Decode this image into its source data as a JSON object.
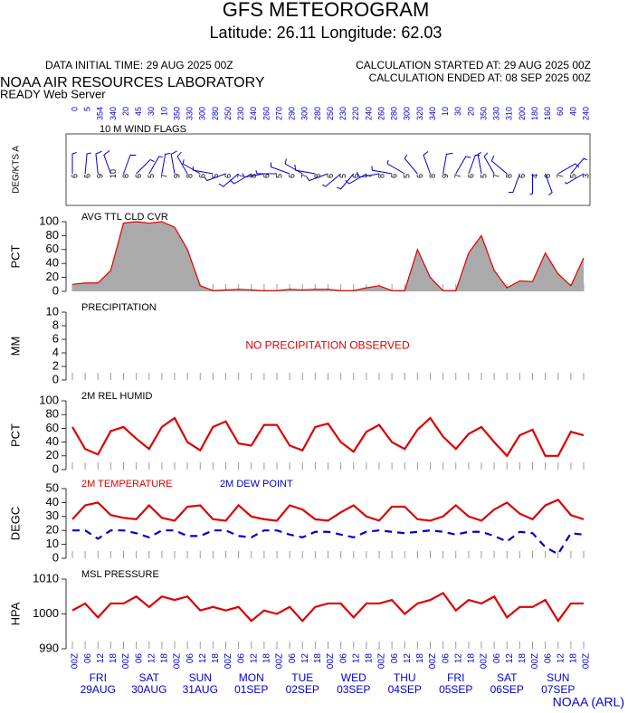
{
  "header": {
    "title": "GFS METEOROGRAM",
    "subtitle": "Latitude: 26.11 Longitude:  62.03",
    "data_time": "DATA INITIAL TIME: 29 AUG 2025 00Z",
    "calc_started": "CALCULATION STARTED AT: 29 AUG 2025 00Z",
    "calc_ended": "CALCULATION ENDED AT: 08 SEP 2025 00Z",
    "lab": "NOAA AIR RESOURCES LABORATORY",
    "server": "READY Web Server",
    "footer": "NOAA (ARL)"
  },
  "time": {
    "x": [
      0,
      6,
      12,
      18,
      24,
      30,
      36,
      42,
      48,
      54,
      60,
      66,
      72,
      78,
      84,
      90,
      96,
      102,
      108,
      114,
      120,
      126,
      132,
      138,
      144,
      150,
      156,
      162,
      168,
      174,
      180,
      186,
      192,
      198,
      204,
      210,
      216,
      222,
      228,
      234,
      240
    ],
    "xlim": [
      0,
      240
    ],
    "xticks": [
      {
        "value": 0,
        "label": "00Z"
      },
      {
        "value": 6,
        "label": "06"
      },
      {
        "value": 12,
        "label": "12"
      },
      {
        "value": 18,
        "label": "18"
      },
      {
        "value": 24,
        "label": "00Z"
      },
      {
        "value": 30,
        "label": "06"
      },
      {
        "value": 36,
        "label": "12"
      },
      {
        "value": 42,
        "label": "18"
      },
      {
        "value": 48,
        "label": "00Z"
      },
      {
        "value": 54,
        "label": "06"
      },
      {
        "value": 60,
        "label": "12"
      },
      {
        "value": 66,
        "label": "18"
      },
      {
        "value": 72,
        "label": "00Z"
      },
      {
        "value": 78,
        "label": "06"
      },
      {
        "value": 84,
        "label": "12"
      },
      {
        "value": 90,
        "label": "18"
      },
      {
        "value": 96,
        "label": "00Z"
      },
      {
        "value": 102,
        "label": "06"
      },
      {
        "value": 108,
        "label": "12"
      },
      {
        "value": 114,
        "label": "18"
      },
      {
        "value": 120,
        "label": "00Z"
      },
      {
        "value": 126,
        "label": "06"
      },
      {
        "value": 132,
        "label": "12"
      },
      {
        "value": 138,
        "label": "18"
      },
      {
        "value": 144,
        "label": "00Z"
      },
      {
        "value": 150,
        "label": "06"
      },
      {
        "value": 156,
        "label": "12"
      },
      {
        "value": 162,
        "label": "18"
      },
      {
        "value": 168,
        "label": "00Z"
      },
      {
        "value": 174,
        "label": "06"
      },
      {
        "value": 180,
        "label": "12"
      },
      {
        "value": 186,
        "label": "18"
      },
      {
        "value": 192,
        "label": "00Z"
      },
      {
        "value": 198,
        "label": "06"
      },
      {
        "value": 204,
        "label": "12"
      },
      {
        "value": 210,
        "label": "18"
      },
      {
        "value": 216,
        "label": "00Z"
      },
      {
        "value": 222,
        "label": "06"
      },
      {
        "value": 228,
        "label": "12"
      },
      {
        "value": 234,
        "label": "18"
      },
      {
        "value": 240,
        "label": "00Z"
      }
    ],
    "days": [
      {
        "value": 12,
        "weekday": "FRI",
        "date": "29AUG"
      },
      {
        "value": 36,
        "weekday": "SAT",
        "date": "30AUG"
      },
      {
        "value": 60,
        "weekday": "SUN",
        "date": "31AUG"
      },
      {
        "value": 84,
        "weekday": "MON",
        "date": "01SEP"
      },
      {
        "value": 108,
        "weekday": "TUE",
        "date": "02SEP"
      },
      {
        "value": 132,
        "weekday": "WED",
        "date": "03SEP"
      },
      {
        "value": 156,
        "weekday": "THU",
        "date": "04SEP"
      },
      {
        "value": 180,
        "weekday": "FRI",
        "date": "05SEP"
      },
      {
        "value": 204,
        "weekday": "SAT",
        "date": "06SEP"
      },
      {
        "value": 228,
        "weekday": "SUN",
        "date": "07SEP"
      }
    ]
  },
  "chart_data": [
    {
      "type": "wind",
      "title": "10 M  WIND FLAGS",
      "ylabel": "DEG/KTS A",
      "color": "#0000cc",
      "directions": [
        0,
        5,
        354,
        340,
        20,
        45,
        30,
        10,
        350,
        330,
        300,
        280,
        250,
        230,
        240,
        260,
        270,
        290,
        300,
        280,
        250,
        230,
        220,
        240,
        260,
        280,
        300,
        320,
        340,
        10,
        30,
        20,
        350,
        330,
        310,
        200,
        180,
        160,
        60,
        40,
        240
      ],
      "speeds": [
        6,
        6,
        9,
        10,
        8,
        6,
        5,
        7,
        9,
        8,
        6,
        5,
        6,
        7,
        8,
        6,
        5,
        6,
        7,
        8,
        6,
        5,
        6,
        7,
        8,
        6,
        5,
        6,
        8,
        9,
        7,
        6,
        5,
        7,
        8,
        6,
        4,
        6,
        7,
        5,
        3
      ]
    },
    {
      "type": "area",
      "title": "AVG TTL CLD CVR",
      "ylabel": "PCT",
      "ylim": [
        0,
        100
      ],
      "yticks": [
        0,
        20,
        40,
        60,
        80,
        100
      ],
      "series": [
        {
          "color": "#dd0000",
          "fill": "#aaaaaa",
          "values": [
            10,
            12,
            12,
            30,
            98,
            100,
            98,
            100,
            92,
            60,
            8,
            1,
            2,
            3,
            2,
            1,
            1,
            3,
            2,
            3,
            3,
            1,
            1,
            5,
            8,
            1,
            1,
            60,
            20,
            1,
            1,
            55,
            80,
            30,
            5,
            15,
            14,
            55,
            25,
            8,
            48
          ]
        }
      ]
    },
    {
      "type": "line",
      "title": "PRECIPITATION",
      "ylabel": "MM",
      "ylim": [
        0,
        10
      ],
      "yticks": [
        0,
        2,
        4,
        6,
        8,
        10
      ],
      "annotation": "NO PRECIPITATION OBSERVED",
      "annotation_color": "#dd0000",
      "series": []
    },
    {
      "type": "line",
      "title": "2M REL HUMID",
      "ylabel": "PCT",
      "ylim": [
        0,
        100
      ],
      "yticks": [
        0,
        20,
        40,
        60,
        80,
        100
      ],
      "series": [
        {
          "color": "#dd0000",
          "values": [
            62,
            30,
            22,
            56,
            62,
            45,
            30,
            62,
            75,
            40,
            28,
            62,
            70,
            38,
            35,
            65,
            65,
            35,
            28,
            62,
            67,
            40,
            26,
            55,
            65,
            40,
            30,
            58,
            75,
            48,
            30,
            52,
            62,
            40,
            20,
            50,
            58,
            20,
            20,
            55,
            50
          ]
        }
      ]
    },
    {
      "type": "line",
      "ylabel": "DEGC",
      "ylim": [
        0,
        50
      ],
      "yticks": [
        0,
        10,
        20,
        30,
        40,
        50
      ],
      "series": [
        {
          "name": "2M TEMPERATURE",
          "color": "#dd0000",
          "values": [
            28,
            38,
            40,
            31,
            29,
            28,
            38,
            29,
            27,
            37,
            38,
            28,
            27,
            38,
            30,
            28,
            27,
            38,
            35,
            28,
            27,
            33,
            38,
            30,
            27,
            37,
            37,
            28,
            27,
            30,
            38,
            30,
            27,
            35,
            40,
            32,
            28,
            38,
            42,
            31,
            28
          ]
        },
        {
          "name": "2M   DEW POINT",
          "color": "#0000cc",
          "dashed": true,
          "values": [
            20,
            20,
            14,
            20,
            20,
            18,
            15,
            20,
            20,
            16,
            16,
            20,
            20,
            16,
            15,
            20,
            20,
            17,
            15,
            19,
            19,
            17,
            15,
            19,
            20,
            19,
            18,
            19,
            20,
            19,
            17,
            19,
            19,
            16,
            12,
            19,
            18,
            8,
            3,
            18,
            17
          ]
        }
      ]
    },
    {
      "type": "line",
      "title": "MSL PRESSURE",
      "ylabel": "HPA",
      "ylim": [
        990,
        1010
      ],
      "yticks": [
        990,
        1000,
        1010
      ],
      "series": [
        {
          "color": "#dd0000",
          "values": [
            1001,
            1003,
            999,
            1003,
            1003,
            1005,
            1002,
            1005,
            1004,
            1005,
            1001,
            1002,
            1001,
            1002,
            998,
            1001,
            1000,
            1002,
            998,
            1002,
            1003,
            1003,
            999,
            1003,
            1003,
            1004,
            1000,
            1003,
            1004,
            1006,
            1001,
            1004,
            1003,
            1005,
            999,
            1002,
            1002,
            1004,
            998,
            1003,
            1003
          ]
        }
      ]
    }
  ]
}
